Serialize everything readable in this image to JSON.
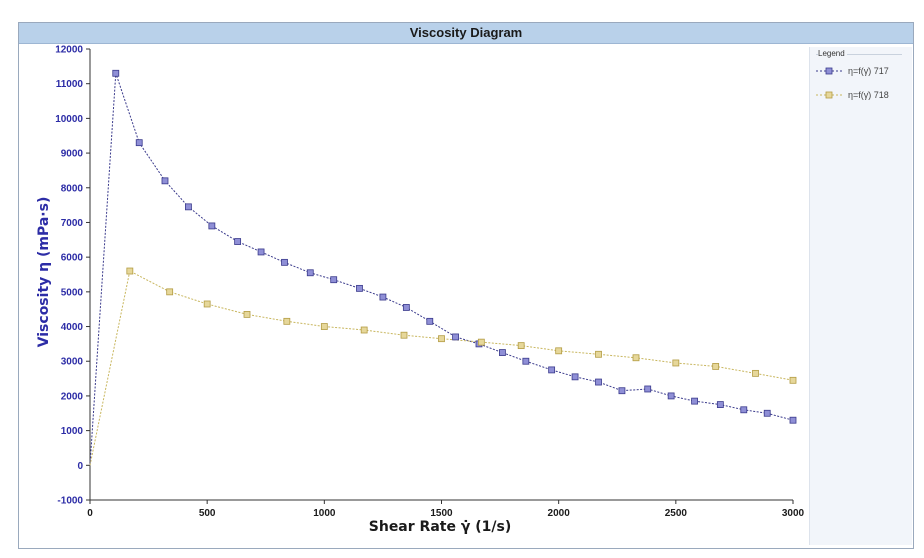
{
  "chart_data": {
    "type": "line",
    "title": "Viscosity Diagram",
    "xlabel": "Shear Rate γ̇ (1/s)",
    "ylabel": "Viscosity η (mPa·s)",
    "xlim": [
      0,
      3000
    ],
    "ylim": [
      -1000,
      12000
    ],
    "x_ticks": [
      0,
      500,
      1000,
      1500,
      2000,
      2500,
      3000
    ],
    "y_ticks": [
      -1000,
      0,
      1000,
      2000,
      3000,
      4000,
      5000,
      6000,
      7000,
      8000,
      9000,
      10000,
      11000,
      12000
    ],
    "grid": false,
    "legend_title": "Legend",
    "legend_position": "right",
    "series": [
      {
        "name": "η=f(γ̇) 717",
        "color": "#3a3a8c",
        "x": [
          0,
          110,
          210,
          320,
          420,
          520,
          630,
          730,
          830,
          940,
          1040,
          1150,
          1250,
          1350,
          1450,
          1560,
          1660,
          1760,
          1860,
          1970,
          2070,
          2170,
          2270,
          2380,
          2480,
          2580,
          2690,
          2790,
          2890,
          3000
        ],
        "y": [
          0,
          11300,
          9300,
          8200,
          7450,
          6900,
          6450,
          6150,
          5850,
          5550,
          5350,
          5100,
          4850,
          4550,
          4150,
          3700,
          3500,
          3250,
          3000,
          2750,
          2550,
          2400,
          2150,
          2200,
          2000,
          1850,
          1750,
          1600,
          1500,
          1300
        ]
      },
      {
        "name": "η=f(γ̇) 718",
        "color": "#c8b65e",
        "x": [
          0,
          170,
          340,
          500,
          670,
          840,
          1000,
          1170,
          1340,
          1500,
          1670,
          1840,
          2000,
          2170,
          2330,
          2500,
          2670,
          2840,
          3000
        ],
        "y": [
          0,
          5600,
          5000,
          4650,
          4350,
          4150,
          4000,
          3900,
          3750,
          3650,
          3550,
          3450,
          3300,
          3200,
          3100,
          2950,
          2850,
          2650,
          2450
        ]
      }
    ]
  }
}
